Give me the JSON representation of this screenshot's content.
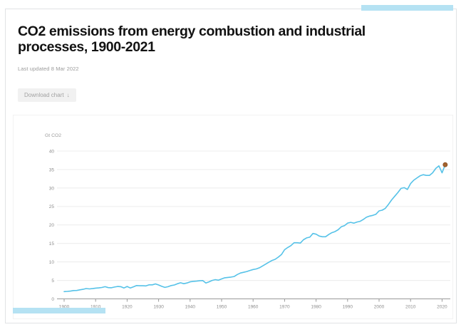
{
  "header": {
    "title": "CO2 emissions from energy combustion and industrial processes, 1900-2021",
    "last_updated": "Last updated 8 Mar 2022"
  },
  "toolbar": {
    "download_label": "Download chart",
    "download_icon": "↓"
  },
  "colors": {
    "line": "#56c2e8",
    "marker_fill": "#a4632d",
    "marker_stroke": "#8a4f22",
    "accent_bar": "#b5e2f3",
    "grid": "#ececec",
    "axis": "#9a9a9a",
    "title_text": "#121212",
    "muted_text": "#9b9b9b"
  },
  "chart_data": {
    "type": "line",
    "title": "CO2 emissions from energy combustion and industrial processes, 1900-2021",
    "xlabel": "",
    "ylabel": "Gt CO2",
    "x_start": 1900,
    "x_step": 1,
    "x_range": [
      1900,
      2021
    ],
    "ylim": [
      0,
      42
    ],
    "yticks": [
      0,
      5,
      10,
      15,
      20,
      25,
      30,
      35,
      40
    ],
    "xticks": [
      1900,
      1910,
      1920,
      1930,
      1940,
      1950,
      1960,
      1970,
      1980,
      1990,
      2000,
      2010,
      2020
    ],
    "grid": true,
    "legend": "none",
    "series": [
      {
        "name": "CO2 emissions (Gt CO2)",
        "values": [
          1.96,
          2.03,
          2.1,
          2.25,
          2.28,
          2.44,
          2.58,
          2.8,
          2.7,
          2.78,
          2.92,
          2.96,
          3.08,
          3.3,
          3.05,
          3.0,
          3.2,
          3.35,
          3.3,
          2.95,
          3.35,
          2.95,
          3.25,
          3.6,
          3.55,
          3.55,
          3.5,
          3.8,
          3.8,
          4.05,
          3.75,
          3.4,
          3.1,
          3.3,
          3.6,
          3.75,
          4.1,
          4.35,
          4.1,
          4.3,
          4.6,
          4.75,
          4.8,
          4.9,
          4.95,
          4.3,
          4.6,
          5.0,
          5.2,
          5.05,
          5.4,
          5.7,
          5.8,
          5.9,
          6.05,
          6.6,
          7.0,
          7.2,
          7.4,
          7.7,
          7.95,
          8.1,
          8.4,
          8.9,
          9.4,
          9.9,
          10.4,
          10.7,
          11.3,
          12.0,
          13.3,
          13.9,
          14.4,
          15.2,
          15.2,
          15.1,
          16.0,
          16.5,
          16.7,
          17.7,
          17.5,
          17.0,
          16.8,
          16.8,
          17.4,
          17.9,
          18.2,
          18.7,
          19.5,
          19.8,
          20.5,
          20.7,
          20.5,
          20.8,
          21.0,
          21.5,
          22.1,
          22.4,
          22.6,
          22.9,
          23.8,
          24.0,
          24.5,
          25.6,
          26.8,
          27.8,
          28.8,
          29.9,
          30.1,
          29.6,
          31.2,
          32.1,
          32.7,
          33.3,
          33.6,
          33.4,
          33.4,
          34.1,
          35.3,
          36.0,
          34.1,
          36.3
        ]
      }
    ],
    "end_marker": {
      "year": 2021,
      "value": 36.3
    }
  }
}
